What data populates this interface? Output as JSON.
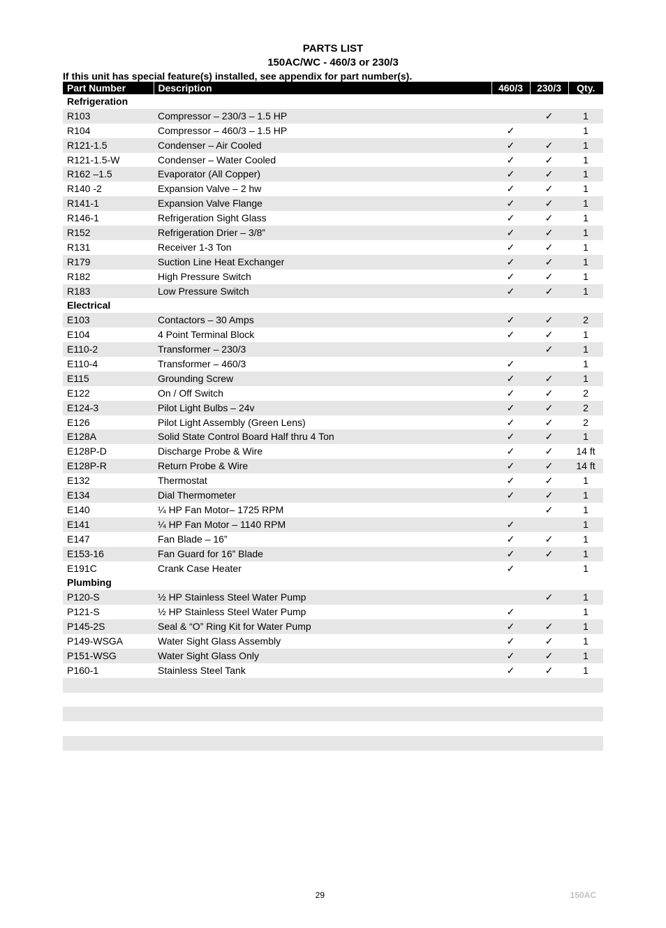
{
  "header": {
    "title1": "PARTS LIST",
    "title2": "150AC/WC - 460/3 or 230/3",
    "note": "If this unit has special feature(s) installed, see appendix for part number(s)."
  },
  "columns": {
    "part": "Part Number",
    "desc": "Description",
    "c460": "460/3",
    "c230": "230/3",
    "qty": "Qty."
  },
  "check": "✓",
  "sections": [
    {
      "name": "Refrigeration",
      "rows": [
        {
          "pn": "R103",
          "desc": "Compressor – 230/3 – 1.5 HP",
          "c460": "",
          "c230": "✓",
          "qty": "1",
          "shade": true
        },
        {
          "pn": "R104",
          "desc": "Compressor – 460/3 – 1.5 HP",
          "c460": "✓",
          "c230": "",
          "qty": "1",
          "shade": false
        },
        {
          "pn": "R121-1.5",
          "desc": "Condenser – Air Cooled",
          "c460": "✓",
          "c230": "✓",
          "qty": "1",
          "shade": true
        },
        {
          "pn": "R121-1.5-W",
          "desc": "Condenser – Water Cooled",
          "c460": "✓",
          "c230": "✓",
          "qty": "1",
          "shade": false
        },
        {
          "pn": "R162 –1.5",
          "desc": "Evaporator (All Copper)",
          "c460": "✓",
          "c230": "✓",
          "qty": "1",
          "shade": true
        },
        {
          "pn": "R140 -2",
          "desc": "Expansion Valve – 2 hw",
          "c460": "✓",
          "c230": "✓",
          "qty": "1",
          "shade": false
        },
        {
          "pn": "R141-1",
          "desc": "Expansion Valve Flange",
          "c460": "✓",
          "c230": "✓",
          "qty": "1",
          "shade": true
        },
        {
          "pn": "R146-1",
          "desc": "Refrigeration Sight Glass",
          "c460": "✓",
          "c230": "✓",
          "qty": "1",
          "shade": false
        },
        {
          "pn": "R152",
          "desc": "Refrigeration Drier – 3/8”",
          "c460": "✓",
          "c230": "✓",
          "qty": "1",
          "shade": true
        },
        {
          "pn": "R131",
          "desc": "Receiver 1-3 Ton",
          "c460": "✓",
          "c230": "✓",
          "qty": "1",
          "shade": false
        },
        {
          "pn": "R179",
          "desc": "Suction Line Heat Exchanger",
          "c460": "✓",
          "c230": "✓",
          "qty": "1",
          "shade": true
        },
        {
          "pn": "R182",
          "desc": "High Pressure Switch",
          "c460": "✓",
          "c230": "✓",
          "qty": "1",
          "shade": false
        },
        {
          "pn": "R183",
          "desc": "Low Pressure Switch",
          "c460": "✓",
          "c230": "✓",
          "qty": "1",
          "shade": true
        }
      ]
    },
    {
      "name": "Electrical",
      "rows": [
        {
          "pn": "E103",
          "desc": "Contactors – 30 Amps",
          "c460": "✓",
          "c230": "✓",
          "qty": "2",
          "shade": true
        },
        {
          "pn": "E104",
          "desc": "4 Point Terminal Block",
          "c460": "✓",
          "c230": "✓",
          "qty": "1",
          "shade": false
        },
        {
          "pn": "E110-2",
          "desc": "Transformer – 230/3",
          "c460": "",
          "c230": "✓",
          "qty": "1",
          "shade": true
        },
        {
          "pn": "E110-4",
          "desc": "Transformer – 460/3",
          "c460": "✓",
          "c230": "",
          "qty": "1",
          "shade": false
        },
        {
          "pn": "E115",
          "desc": "Grounding Screw",
          "c460": "✓",
          "c230": "✓",
          "qty": "1",
          "shade": true
        },
        {
          "pn": "E122",
          "desc": "On / Off Switch",
          "c460": "✓",
          "c230": "✓",
          "qty": "2",
          "shade": false
        },
        {
          "pn": "E124-3",
          "desc": "Pilot Light Bulbs – 24v",
          "c460": "✓",
          "c230": "✓",
          "qty": "2",
          "shade": true
        },
        {
          "pn": "E126",
          "desc": "Pilot Light Assembly (Green Lens)",
          "c460": "✓",
          "c230": "✓",
          "qty": "2",
          "shade": false
        },
        {
          "pn": "E128A",
          "desc": "Solid State Control Board Half thru 4 Ton",
          "c460": "✓",
          "c230": "✓",
          "qty": "1",
          "shade": true
        },
        {
          "pn": "E128P-D",
          "desc": "Discharge Probe & Wire",
          "c460": "✓",
          "c230": "✓",
          "qty": "14 ft",
          "shade": false
        },
        {
          "pn": "E128P-R",
          "desc": "Return Probe & Wire",
          "c460": "✓",
          "c230": "✓",
          "qty": "14 ft",
          "shade": true
        },
        {
          "pn": "E132",
          "desc": "Thermostat",
          "c460": "✓",
          "c230": "✓",
          "qty": "1",
          "shade": false
        },
        {
          "pn": "E134",
          "desc": "Dial Thermometer",
          "c460": "✓",
          "c230": "✓",
          "qty": "1",
          "shade": true
        },
        {
          "pn": "E140",
          "desc": "¼ HP Fan Motor– 1725 RPM",
          "c460": "",
          "c230": "✓",
          "qty": "1",
          "shade": false
        },
        {
          "pn": "E141",
          "desc": "¼ HP Fan Motor – 1140 RPM",
          "c460": "✓",
          "c230": "",
          "qty": "1",
          "shade": true
        },
        {
          "pn": "E147",
          "desc": "Fan Blade – 16”",
          "c460": "✓",
          "c230": "✓",
          "qty": "1",
          "shade": false
        },
        {
          "pn": "E153-16",
          "desc": "Fan Guard for 16” Blade",
          "c460": "✓",
          "c230": "✓",
          "qty": "1",
          "shade": true
        },
        {
          "pn": "E191C",
          "desc": "Crank Case Heater",
          "c460": "✓",
          "c230": "",
          "qty": "1",
          "shade": false
        }
      ]
    },
    {
      "name": "Plumbing",
      "rows": [
        {
          "pn": "P120-S",
          "desc": "½ HP Stainless Steel Water Pump",
          "c460": "",
          "c230": "✓",
          "qty": "1",
          "shade": true
        },
        {
          "pn": "P121-S",
          "desc": "½ HP Stainless Steel Water Pump",
          "c460": "✓",
          "c230": "",
          "qty": "1",
          "shade": false
        },
        {
          "pn": "P145-2S",
          "desc": "Seal & “O” Ring Kit for Water Pump",
          "c460": "✓",
          "c230": "✓",
          "qty": "1",
          "shade": true
        },
        {
          "pn": "P149-WSGA",
          "desc": "Water Sight Glass Assembly",
          "c460": "✓",
          "c230": "✓",
          "qty": "1",
          "shade": false
        },
        {
          "pn": "P151-WSG",
          "desc": "Water Sight Glass Only",
          "c460": "✓",
          "c230": "✓",
          "qty": "1",
          "shade": true
        },
        {
          "pn": "P160-1",
          "desc": "Stainless Steel Tank",
          "c460": "✓",
          "c230": "✓",
          "qty": "1",
          "shade": false
        }
      ]
    }
  ],
  "trailing_rows": [
    {
      "shade": true
    },
    {
      "shade": false
    },
    {
      "shade": true
    },
    {
      "shade": false
    },
    {
      "shade": true
    }
  ],
  "footer": {
    "page": "29",
    "model": "150AC"
  }
}
